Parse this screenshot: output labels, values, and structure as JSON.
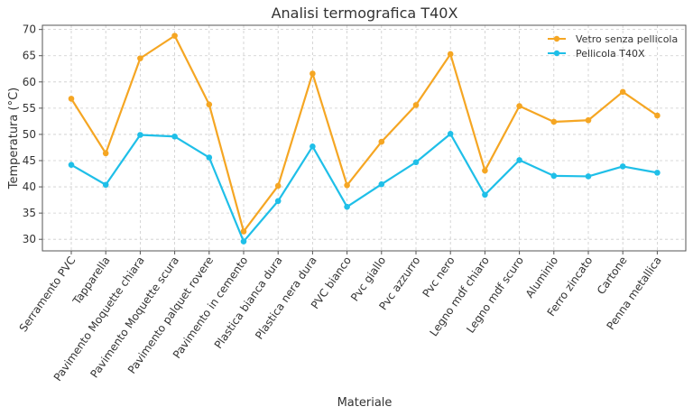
{
  "chart_data": {
    "type": "line",
    "title": "Analisi termografica T40X",
    "xlabel": "Materiale",
    "ylabel": "Temperatura (°C)",
    "ylim": [
      27.8,
      70.8
    ],
    "yticks": [
      30,
      35,
      40,
      45,
      50,
      55,
      60,
      65,
      70
    ],
    "grid": true,
    "legend_position": "top-right",
    "categories": [
      "Serramento PVC",
      "Tapparella",
      "Pavimento Moquette chiara",
      "Pavimento Moquette scura",
      "Pavimento palquet rovere",
      "Pavimento in cemento",
      "Plastica bianca dura",
      "Plastica nera dura",
      "PVC bianco",
      "Pvc giallo",
      "Pvc azzurro",
      "Pvc nero",
      "Legno mdf chiaro",
      "Legno mdf scuro",
      "Aluminio",
      "Ferro zincato",
      "Cartone",
      "Penna metallica"
    ],
    "series": [
      {
        "name": "Vetro senza pellicola",
        "color": "#f5a623",
        "values": [
          56.8,
          46.4,
          64.5,
          68.8,
          55.7,
          31.5,
          40.2,
          61.6,
          40.3,
          48.6,
          55.6,
          65.3,
          43.1,
          55.4,
          52.4,
          52.7,
          58.1,
          53.6
        ]
      },
      {
        "name": "Pellicola T40X",
        "color": "#1fbfe8",
        "values": [
          44.2,
          40.4,
          49.9,
          49.6,
          45.6,
          29.6,
          37.3,
          47.7,
          36.2,
          40.5,
          44.7,
          50.1,
          38.5,
          45.1,
          42.1,
          42.0,
          43.9,
          42.7
        ]
      }
    ]
  }
}
